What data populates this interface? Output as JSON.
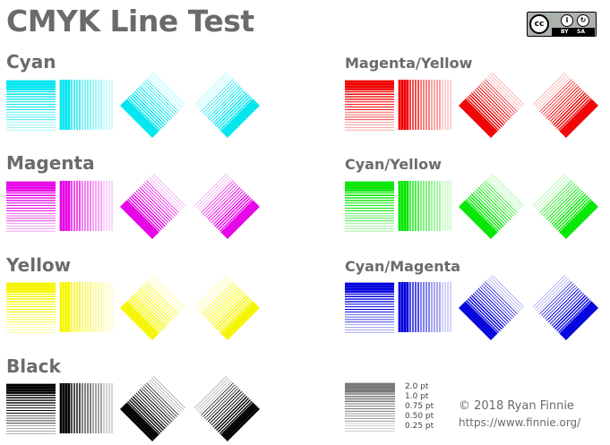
{
  "title": "CMYK Line Test",
  "sections": [
    {
      "label": "Cyan",
      "color": "#00e5ee"
    },
    {
      "label": "Magenta",
      "color": "#e600e6"
    },
    {
      "label": "Yellow",
      "color": "#f5f500"
    },
    {
      "label": "Black",
      "color": "#000000"
    },
    {
      "label": "Magenta/Yellow",
      "color": "#ee0000"
    },
    {
      "label": "Cyan/Yellow",
      "color": "#00e600"
    },
    {
      "label": "Cyan/Magenta",
      "color": "#0000dd"
    }
  ],
  "line_weights": [
    "2.0 pt",
    "1.0 pt",
    "0.75 pt",
    "0.50 pt",
    "0.25 pt"
  ],
  "scale_color": "#777777",
  "license": {
    "icon": "cc-by-sa-icon",
    "cc": "cc",
    "by": "BY",
    "sa": "SA"
  },
  "credit": {
    "copyright": "© 2018 Ryan Finnie",
    "url": "https://www.finnie.org/"
  }
}
